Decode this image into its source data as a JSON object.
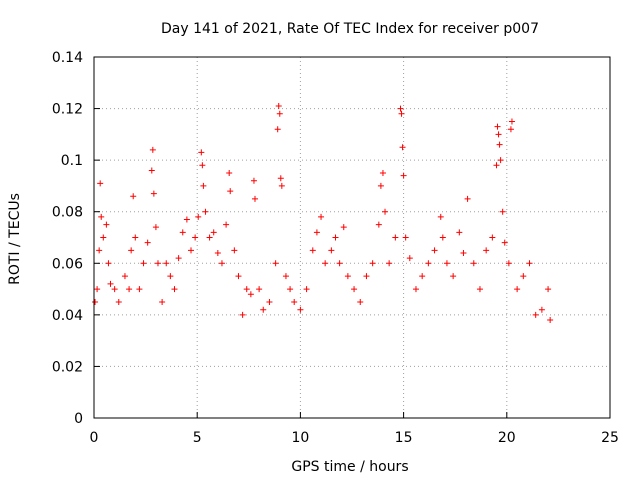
{
  "chart_data": {
    "type": "scatter",
    "title": "Day 141 of 2021, Rate Of TEC Index for receiver p007",
    "xlabel": "GPS time / hours",
    "ylabel": "ROTI / TECUs",
    "xlim": [
      0,
      25
    ],
    "ylim": [
      0,
      0.14
    ],
    "xticks": [
      0,
      5,
      10,
      15,
      20,
      25
    ],
    "yticks": [
      0,
      0.02,
      0.04,
      0.06,
      0.08,
      0.1,
      0.12,
      0.14
    ],
    "ytick_labels": [
      "0",
      "0.02",
      "0.04",
      "0.06",
      "0.08",
      "0.1",
      "0.12",
      "0.14"
    ],
    "grid": true,
    "marker": "+",
    "color": "#ff0000",
    "series": [
      {
        "points": [
          [
            0.05,
            0.045
          ],
          [
            0.15,
            0.05
          ],
          [
            0.25,
            0.065
          ],
          [
            0.3,
            0.091
          ],
          [
            0.35,
            0.078
          ],
          [
            0.45,
            0.07
          ],
          [
            0.6,
            0.075
          ],
          [
            0.7,
            0.06
          ],
          [
            0.8,
            0.052
          ],
          [
            1.0,
            0.05
          ],
          [
            1.2,
            0.045
          ],
          [
            1.5,
            0.055
          ],
          [
            1.7,
            0.05
          ],
          [
            1.8,
            0.065
          ],
          [
            1.9,
            0.086
          ],
          [
            2.0,
            0.07
          ],
          [
            2.2,
            0.05
          ],
          [
            2.4,
            0.06
          ],
          [
            2.6,
            0.068
          ],
          [
            2.8,
            0.096
          ],
          [
            2.85,
            0.104
          ],
          [
            2.9,
            0.087
          ],
          [
            3.0,
            0.074
          ],
          [
            3.1,
            0.06
          ],
          [
            3.3,
            0.045
          ],
          [
            3.5,
            0.06
          ],
          [
            3.7,
            0.055
          ],
          [
            3.9,
            0.05
          ],
          [
            4.1,
            0.062
          ],
          [
            4.3,
            0.072
          ],
          [
            4.5,
            0.077
          ],
          [
            4.7,
            0.065
          ],
          [
            4.9,
            0.07
          ],
          [
            5.05,
            0.078
          ],
          [
            5.2,
            0.103
          ],
          [
            5.25,
            0.098
          ],
          [
            5.3,
            0.09
          ],
          [
            5.4,
            0.08
          ],
          [
            5.6,
            0.07
          ],
          [
            5.8,
            0.072
          ],
          [
            6.0,
            0.064
          ],
          [
            6.2,
            0.06
          ],
          [
            6.4,
            0.075
          ],
          [
            6.55,
            0.095
          ],
          [
            6.6,
            0.088
          ],
          [
            6.8,
            0.065
          ],
          [
            7.0,
            0.055
          ],
          [
            7.2,
            0.04
          ],
          [
            7.4,
            0.05
          ],
          [
            7.6,
            0.048
          ],
          [
            7.75,
            0.092
          ],
          [
            7.8,
            0.085
          ],
          [
            8.0,
            0.05
          ],
          [
            8.2,
            0.042
          ],
          [
            8.5,
            0.045
          ],
          [
            8.8,
            0.06
          ],
          [
            8.9,
            0.112
          ],
          [
            8.95,
            0.121
          ],
          [
            9.0,
            0.118
          ],
          [
            9.05,
            0.093
          ],
          [
            9.1,
            0.09
          ],
          [
            9.3,
            0.055
          ],
          [
            9.5,
            0.05
          ],
          [
            9.7,
            0.045
          ],
          [
            10.0,
            0.042
          ],
          [
            10.3,
            0.05
          ],
          [
            10.6,
            0.065
          ],
          [
            10.8,
            0.072
          ],
          [
            11.0,
            0.078
          ],
          [
            11.2,
            0.06
          ],
          [
            11.5,
            0.065
          ],
          [
            11.7,
            0.07
          ],
          [
            11.9,
            0.06
          ],
          [
            12.1,
            0.074
          ],
          [
            12.3,
            0.055
          ],
          [
            12.6,
            0.05
          ],
          [
            12.9,
            0.045
          ],
          [
            13.2,
            0.055
          ],
          [
            13.5,
            0.06
          ],
          [
            13.8,
            0.075
          ],
          [
            13.9,
            0.09
          ],
          [
            14.0,
            0.095
          ],
          [
            14.1,
            0.08
          ],
          [
            14.3,
            0.06
          ],
          [
            14.6,
            0.07
          ],
          [
            14.85,
            0.12
          ],
          [
            14.9,
            0.118
          ],
          [
            14.95,
            0.105
          ],
          [
            15.0,
            0.094
          ],
          [
            15.1,
            0.07
          ],
          [
            15.3,
            0.062
          ],
          [
            15.6,
            0.05
          ],
          [
            15.9,
            0.055
          ],
          [
            16.2,
            0.06
          ],
          [
            16.5,
            0.065
          ],
          [
            16.8,
            0.078
          ],
          [
            16.9,
            0.07
          ],
          [
            17.1,
            0.06
          ],
          [
            17.4,
            0.055
          ],
          [
            17.7,
            0.072
          ],
          [
            17.9,
            0.064
          ],
          [
            18.1,
            0.085
          ],
          [
            18.4,
            0.06
          ],
          [
            18.7,
            0.05
          ],
          [
            19.0,
            0.065
          ],
          [
            19.3,
            0.07
          ],
          [
            19.5,
            0.098
          ],
          [
            19.55,
            0.113
          ],
          [
            19.6,
            0.11
          ],
          [
            19.65,
            0.106
          ],
          [
            19.7,
            0.1
          ],
          [
            19.8,
            0.08
          ],
          [
            19.9,
            0.068
          ],
          [
            20.1,
            0.06
          ],
          [
            20.2,
            0.112
          ],
          [
            20.25,
            0.115
          ],
          [
            20.5,
            0.05
          ],
          [
            20.8,
            0.055
          ],
          [
            21.1,
            0.06
          ],
          [
            21.4,
            0.04
          ],
          [
            21.7,
            0.042
          ],
          [
            22.0,
            0.05
          ],
          [
            22.1,
            0.038
          ]
        ]
      }
    ]
  }
}
